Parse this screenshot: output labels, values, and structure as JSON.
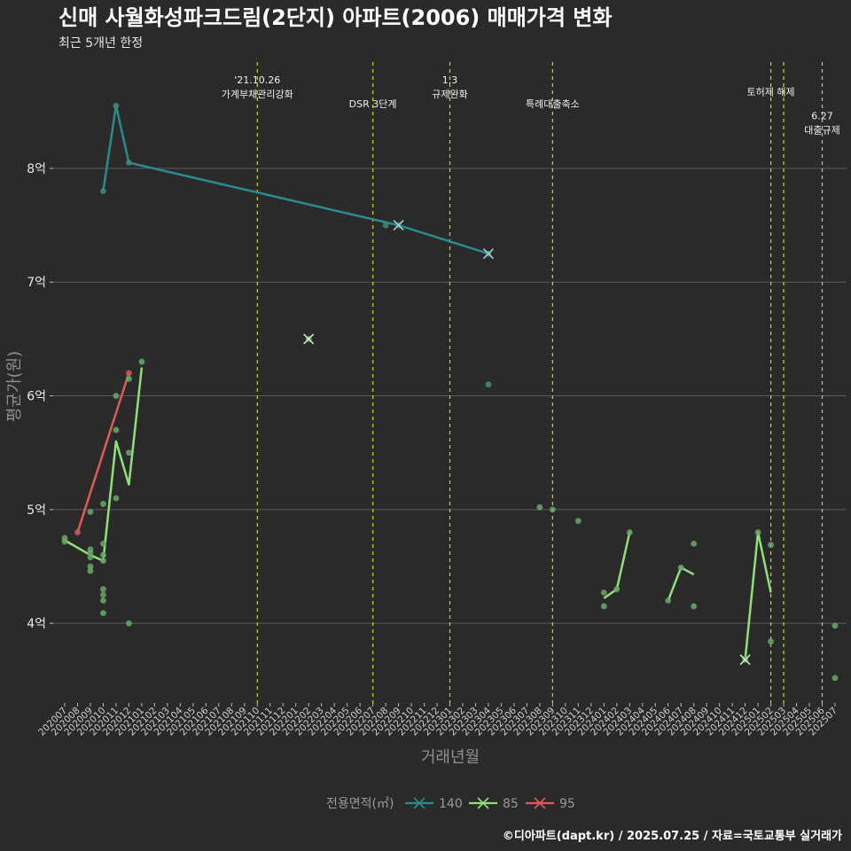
{
  "header": {
    "title": "신매 사월화성파크드림(2단지) 아파트(2006) 매매가격 변화",
    "subtitle": "최근 5개년 한정"
  },
  "caption": "©디아파트(dapt.kr) / 2025.07.25 / 자료=국토교통부 실거래가",
  "colors": {
    "background": "#2b2a2b",
    "grid": "#5a5a5a",
    "event_line": "#d4d40a",
    "series_140": "#2a8a8c",
    "series_85": "#8fe07a",
    "series_95": "#e05a5a",
    "points": "#6aa86a"
  },
  "chart_data": {
    "type": "line",
    "xlabel": "거래년월",
    "ylabel": "평균가(원)",
    "ylim": [
      3.3,
      8.95
    ],
    "yticks": [
      4,
      5,
      6,
      7,
      8
    ],
    "ytick_labels": [
      "4억",
      "5억",
      "6억",
      "7억",
      "8억"
    ],
    "grid": true,
    "legend_title": "전용면적(㎡)",
    "legend_position": "bottom",
    "x": [
      "202007",
      "202008",
      "202009",
      "202010",
      "202011",
      "202012",
      "202101",
      "202102",
      "202103",
      "202104",
      "202105",
      "202106",
      "202107",
      "202108",
      "202109",
      "202110",
      "202111",
      "202112",
      "202201",
      "202202",
      "202203",
      "202204",
      "202205",
      "202206",
      "202207",
      "202208",
      "202209",
      "202210",
      "202211",
      "202212",
      "202301",
      "202302",
      "202303",
      "202304",
      "202305",
      "202306",
      "202307",
      "202308",
      "202309",
      "202310",
      "202311",
      "202312",
      "202401",
      "202402",
      "202403",
      "202404",
      "202405",
      "202406",
      "202407",
      "202408",
      "202409",
      "202410",
      "202411",
      "202412",
      "202501",
      "202502",
      "202503",
      "202504",
      "202505",
      "202506",
      "202507"
    ],
    "events": [
      {
        "x": "202110",
        "label_lines": [
          "'21.10.26",
          "가계부채관리강화"
        ],
        "row": 0
      },
      {
        "x": "202207",
        "label_lines": [
          "DSR 3단계"
        ],
        "row": 1
      },
      {
        "x": "202301",
        "label_lines": [
          "1.3",
          "규제완화"
        ],
        "row": 0
      },
      {
        "x": "202309",
        "label_lines": [
          "특례대출축소"
        ],
        "row": 1
      },
      {
        "x": "202502",
        "label_lines": [
          "토허제 해제"
        ],
        "row": 0.5
      },
      {
        "x": "202503",
        "label_lines": [],
        "row": 0
      },
      {
        "x": "202506",
        "label_lines": [
          "6.27",
          "대출규제"
        ],
        "row": 1.5
      }
    ],
    "series": [
      {
        "name": "140",
        "line": [
          [
            "202010",
            7.8
          ],
          [
            "202011",
            8.55
          ],
          [
            "202012",
            8.05
          ],
          [
            "202209",
            7.5
          ],
          [
            "202304",
            7.25
          ]
        ],
        "cross_markers": [
          [
            "202209",
            7.5
          ],
          [
            "202304",
            7.25
          ]
        ],
        "points": [
          [
            "202010",
            7.8
          ],
          [
            "202011",
            8.55
          ],
          [
            "202012",
            8.05
          ],
          [
            "202208",
            7.5
          ],
          [
            "202209",
            7.5
          ],
          [
            "202304",
            7.25
          ],
          [
            "202304",
            6.1
          ]
        ]
      },
      {
        "name": "85",
        "line_segments": [
          [
            [
              "202007",
              4.73
            ],
            [
              "202009",
              4.6
            ],
            [
              "202010",
              4.55
            ],
            [
              "202011",
              5.6
            ],
            [
              "202012",
              5.22
            ],
            [
              "202101",
              6.25
            ]
          ],
          [
            [
              "202401",
              4.22
            ],
            [
              "202402",
              4.3
            ],
            [
              "202403",
              4.8
            ]
          ],
          [
            [
              "202406",
              4.2
            ],
            [
              "202407",
              4.49
            ],
            [
              "202408",
              4.43
            ]
          ],
          [
            [
              "202412",
              3.68
            ],
            [
              "202501",
              4.8
            ],
            [
              "202502",
              4.27
            ]
          ]
        ],
        "cross_markers": [
          [
            "202202",
            6.5
          ],
          [
            "202412",
            3.68
          ]
        ],
        "points": [
          [
            "202007",
            4.75
          ],
          [
            "202007",
            4.72
          ],
          [
            "202009",
            4.98
          ],
          [
            "202009",
            4.65
          ],
          [
            "202009",
            4.62
          ],
          [
            "202009",
            4.58
          ],
          [
            "202009",
            4.5
          ],
          [
            "202009",
            4.46
          ],
          [
            "202010",
            5.05
          ],
          [
            "202010",
            4.7
          ],
          [
            "202010",
            4.6
          ],
          [
            "202010",
            4.55
          ],
          [
            "202010",
            4.3
          ],
          [
            "202010",
            4.25
          ],
          [
            "202010",
            4.2
          ],
          [
            "202010",
            4.09
          ],
          [
            "202011",
            6.0
          ],
          [
            "202011",
            5.7
          ],
          [
            "202011",
            5.1
          ],
          [
            "202012",
            5.5
          ],
          [
            "202012",
            6.15
          ],
          [
            "202012",
            4.0
          ],
          [
            "202101",
            6.3
          ],
          [
            "202202",
            6.5
          ],
          [
            "202308",
            5.02
          ],
          [
            "202309",
            5.0
          ],
          [
            "202311",
            4.9
          ],
          [
            "202401",
            4.27
          ],
          [
            "202401",
            4.15
          ],
          [
            "202402",
            4.3
          ],
          [
            "202403",
            4.8
          ],
          [
            "202406",
            4.2
          ],
          [
            "202407",
            4.49
          ],
          [
            "202408",
            4.7
          ],
          [
            "202408",
            4.15
          ],
          [
            "202412",
            3.68
          ],
          [
            "202501",
            4.8
          ],
          [
            "202502",
            4.69
          ],
          [
            "202502",
            3.84
          ],
          [
            "202507",
            3.98
          ],
          [
            "202507",
            3.52
          ]
        ]
      },
      {
        "name": "95",
        "line": [
          [
            "202008",
            4.8
          ],
          [
            "202012",
            6.2
          ]
        ],
        "cross_markers": [],
        "points": [
          [
            "202008",
            4.8
          ],
          [
            "202012",
            6.2
          ]
        ]
      }
    ]
  }
}
